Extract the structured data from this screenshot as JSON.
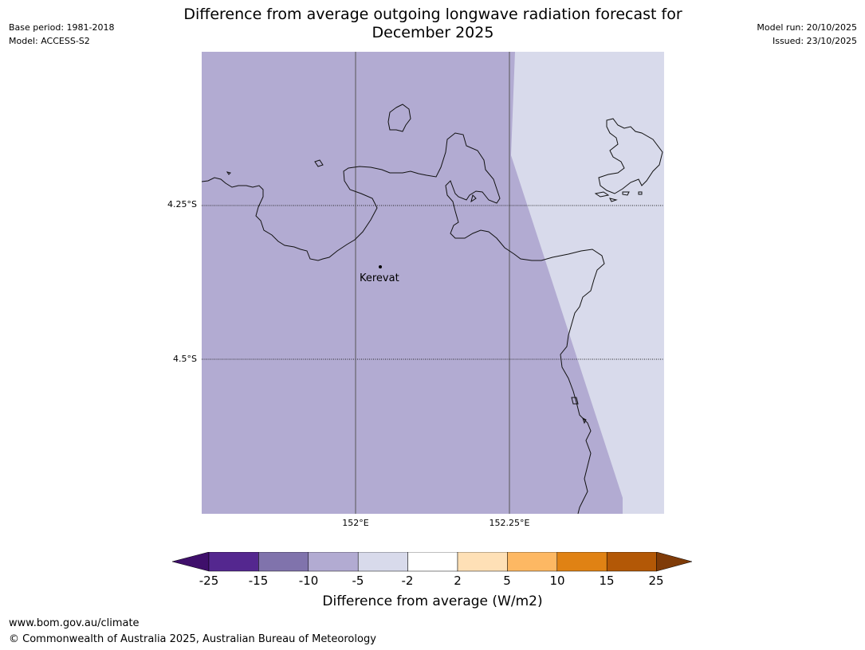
{
  "header": {
    "base_period": "Base period: 1981-2018",
    "model": "Model: ACCESS-S2",
    "model_run": "Model run: 20/10/2025",
    "issued": "Issued: 23/10/2025",
    "title_line1": "Difference from average outgoing longwave radiation forecast for",
    "title_line2": "December 2025"
  },
  "map": {
    "gridlines": {
      "latitudes": [
        "4.25°S",
        "4.5°S"
      ],
      "longitudes": [
        "152°E",
        "152.25°E"
      ]
    },
    "places": [
      {
        "name": "Kerevat"
      }
    ],
    "region_category": "-10 to -5 (west), -5 to -2 (east)"
  },
  "legend": {
    "label": "Difference from average (W/m2)",
    "ticks": [
      "-25",
      "-15",
      "-10",
      "-5",
      "-2",
      "2",
      "5",
      "10",
      "15",
      "25"
    ],
    "colors": [
      "#3f0f6b",
      "#54278f",
      "#8073ac",
      "#b2abd2",
      "#d8daeb",
      "#ffffff",
      "#fee0b6",
      "#fdb863",
      "#e08214",
      "#b35806",
      "#7f3b08"
    ]
  },
  "footer": {
    "url": "www.bom.gov.au/climate",
    "copyright": "© Commonwealth of Australia 2025, Australian Bureau of Meteorology"
  }
}
